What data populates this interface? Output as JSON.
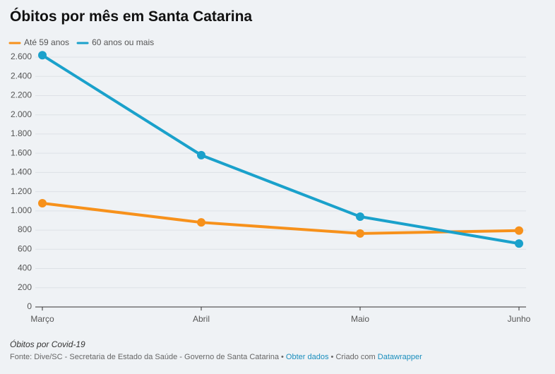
{
  "chart_data": {
    "type": "line",
    "title": "Óbitos por mês em Santa Catarina",
    "categories": [
      "Março",
      "Abril",
      "Maio",
      "Junho"
    ],
    "series": [
      {
        "name": "Até 59 anos",
        "color": "#f7911b",
        "values": [
          1080,
          880,
          765,
          795
        ]
      },
      {
        "name": "60 anos ou mais",
        "color": "#1aa1cb",
        "values": [
          2620,
          1580,
          940,
          660
        ]
      }
    ],
    "ylim": [
      0,
      2600
    ],
    "yticks": [
      0,
      200,
      400,
      600,
      800,
      {
        "value": 1000,
        "label": "1.000"
      },
      {
        "value": 1200,
        "label": "1.200"
      },
      {
        "value": 1400,
        "label": "1.400"
      },
      {
        "value": 1600,
        "label": "1.600"
      },
      {
        "value": 1800,
        "label": "1.800"
      },
      {
        "value": 2000,
        "label": "2.000"
      },
      {
        "value": 2200,
        "label": "2.200"
      },
      {
        "value": 2400,
        "label": "2.400"
      },
      {
        "value": 2600,
        "label": "2.600"
      }
    ],
    "grid": true,
    "legend": "top-left",
    "notes": "Óbitos por Covid-19",
    "source": {
      "text": "Fonte: Dive/SC - Secretaria de Estado da Saúde - Governo de Santa Catarina",
      "separator": "•",
      "data_link": "Obter dados",
      "credit": "Criado com",
      "credit_link": "Datawrapper"
    }
  }
}
